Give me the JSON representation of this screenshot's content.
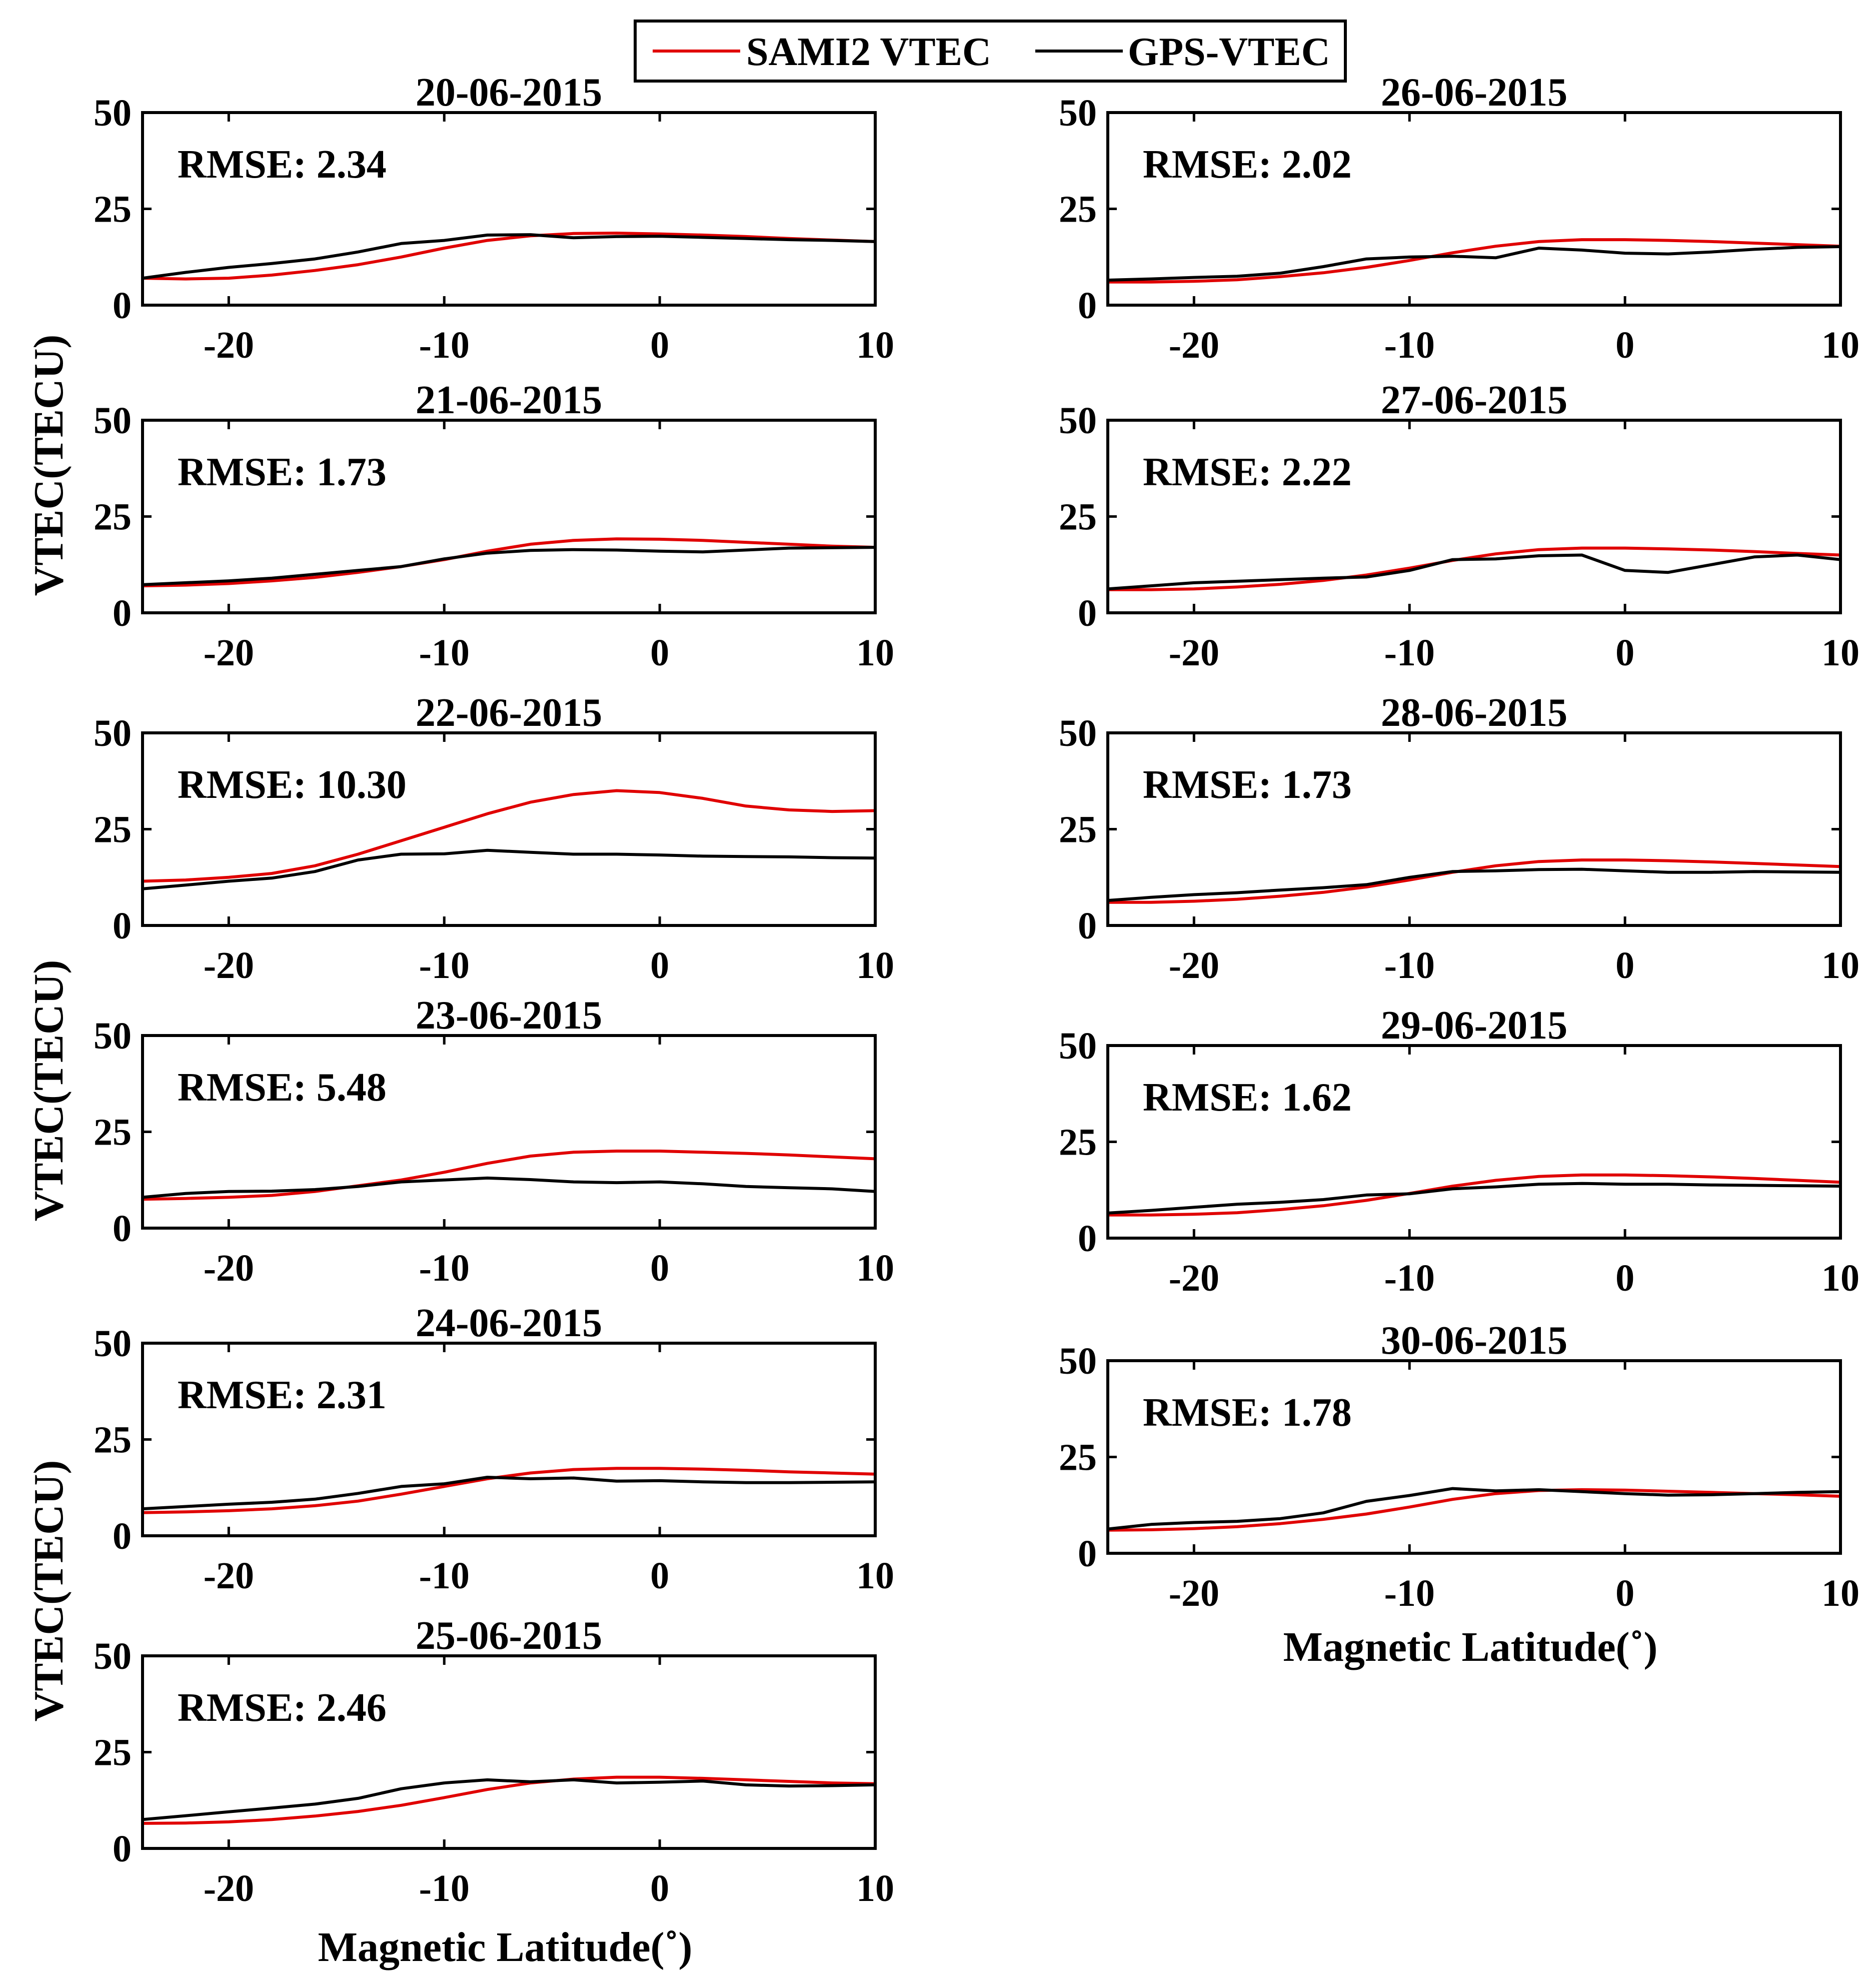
{
  "legend": {
    "entries": [
      {
        "name": "SAMI2 VTEC",
        "color": "#e00000"
      },
      {
        "name": "GPS-VTEC",
        "color": "#000000"
      }
    ]
  },
  "chart_data": [
    {
      "type": "line",
      "title": "20-06-2015",
      "annotation": "RMSE: 2.34",
      "x": [
        -24,
        -22,
        -20,
        -18,
        -16,
        -14,
        -12,
        -10,
        -8,
        -6,
        -4,
        -2,
        0,
        2,
        4,
        6,
        8,
        10
      ],
      "series": [
        {
          "name": "SAMI2 VTEC",
          "values": [
            7,
            6.8,
            7,
            7.8,
            9,
            10.5,
            12.5,
            14.8,
            16.8,
            18,
            18.6,
            18.7,
            18.5,
            18.2,
            17.8,
            17.3,
            16.9,
            16.5
          ]
        },
        {
          "name": "GPS-VTEC",
          "values": [
            7,
            8.5,
            9.8,
            10.8,
            12,
            13.8,
            16,
            16.8,
            18.2,
            18.3,
            17.5,
            17.8,
            17.9,
            17.6,
            17.3,
            17,
            16.8,
            16.5
          ]
        }
      ],
      "xlim": [
        -24,
        10
      ],
      "ylim": [
        0,
        50
      ],
      "xticks": [
        -20,
        -10,
        0,
        10
      ],
      "yticks": [
        0,
        25,
        50
      ]
    },
    {
      "type": "line",
      "title": "21-06-2015",
      "annotation": "RMSE: 1.73",
      "x": [
        -24,
        -22,
        -20,
        -18,
        -16,
        -14,
        -12,
        -10,
        -8,
        -6,
        -4,
        -2,
        0,
        2,
        4,
        6,
        8,
        10
      ],
      "series": [
        {
          "name": "SAMI2 VTEC",
          "values": [
            7,
            7.2,
            7.6,
            8.3,
            9.2,
            10.5,
            12,
            13.8,
            16,
            17.8,
            18.8,
            19.2,
            19.1,
            18.8,
            18.3,
            17.8,
            17.3,
            17
          ]
        },
        {
          "name": "GPS-VTEC",
          "values": [
            7.3,
            7.8,
            8.3,
            9,
            10,
            11,
            12,
            14,
            15.5,
            16.2,
            16.4,
            16.3,
            16,
            15.8,
            16.3,
            16.8,
            16.9,
            17
          ]
        }
      ],
      "xlim": [
        -24,
        10
      ],
      "ylim": [
        0,
        50
      ],
      "xticks": [
        -20,
        -10,
        0,
        10
      ],
      "yticks": [
        0,
        25,
        50
      ]
    },
    {
      "type": "line",
      "title": "22-06-2015",
      "annotation": "RMSE: 10.30",
      "x": [
        -24,
        -22,
        -20,
        -18,
        -16,
        -14,
        -12,
        -10,
        -8,
        -6,
        -4,
        -2,
        0,
        2,
        4,
        6,
        8,
        10
      ],
      "series": [
        {
          "name": "SAMI2 VTEC",
          "values": [
            11.5,
            11.8,
            12.5,
            13.5,
            15.5,
            18.5,
            22,
            25.5,
            29,
            32,
            34,
            35,
            34.5,
            33,
            31,
            30,
            29.6,
            29.8
          ]
        },
        {
          "name": "GPS-VTEC",
          "values": [
            9.5,
            10.5,
            11.5,
            12.3,
            14,
            17,
            18.5,
            18.6,
            19.5,
            19,
            18.5,
            18.5,
            18.3,
            18,
            17.9,
            17.8,
            17.6,
            17.5
          ]
        }
      ],
      "xlim": [
        -24,
        10
      ],
      "ylim": [
        0,
        50
      ],
      "xticks": [
        -20,
        -10,
        0,
        10
      ],
      "yticks": [
        0,
        25,
        50
      ]
    },
    {
      "type": "line",
      "title": "23-06-2015",
      "annotation": "RMSE: 5.48",
      "x": [
        -24,
        -22,
        -20,
        -18,
        -16,
        -14,
        -12,
        -10,
        -8,
        -6,
        -4,
        -2,
        0,
        2,
        4,
        6,
        8,
        10
      ],
      "series": [
        {
          "name": "SAMI2 VTEC",
          "values": [
            7.5,
            7.7,
            8,
            8.5,
            9.5,
            11,
            12.5,
            14.5,
            16.8,
            18.7,
            19.7,
            20,
            20,
            19.7,
            19.4,
            19,
            18.5,
            18
          ]
        },
        {
          "name": "GPS-VTEC",
          "values": [
            8,
            9,
            9.5,
            9.6,
            10,
            10.8,
            12,
            12.5,
            13,
            12.6,
            12,
            11.8,
            12,
            11.5,
            10.8,
            10.5,
            10.2,
            9.5
          ]
        }
      ],
      "xlim": [
        -24,
        10
      ],
      "ylim": [
        0,
        50
      ],
      "xticks": [
        -20,
        -10,
        0,
        10
      ],
      "yticks": [
        0,
        25,
        50
      ]
    },
    {
      "type": "line",
      "title": "24-06-2015",
      "annotation": "RMSE: 2.31",
      "x": [
        -24,
        -22,
        -20,
        -18,
        -16,
        -14,
        -12,
        -10,
        -8,
        -6,
        -4,
        -2,
        0,
        2,
        4,
        6,
        8,
        10
      ],
      "series": [
        {
          "name": "SAMI2 VTEC",
          "values": [
            6,
            6.2,
            6.5,
            7,
            7.8,
            9,
            10.8,
            12.8,
            14.8,
            16.3,
            17.2,
            17.5,
            17.5,
            17.3,
            17,
            16.6,
            16.3,
            16
          ]
        },
        {
          "name": "GPS-VTEC",
          "values": [
            7,
            7.6,
            8.2,
            8.7,
            9.5,
            11,
            12.8,
            13.5,
            15.2,
            14.8,
            15,
            14.2,
            14.3,
            14,
            13.8,
            13.8,
            13.9,
            14
          ]
        }
      ],
      "xlim": [
        -24,
        10
      ],
      "ylim": [
        0,
        50
      ],
      "xticks": [
        -20,
        -10,
        0,
        10
      ],
      "yticks": [
        0,
        25,
        50
      ]
    },
    {
      "type": "line",
      "title": "25-06-2015",
      "annotation": "RMSE: 2.46",
      "x": [
        -24,
        -22,
        -20,
        -18,
        -16,
        -14,
        -12,
        -10,
        -8,
        -6,
        -4,
        -2,
        0,
        2,
        4,
        6,
        8,
        10
      ],
      "series": [
        {
          "name": "SAMI2 VTEC",
          "values": [
            6.5,
            6.6,
            6.9,
            7.5,
            8.4,
            9.6,
            11.2,
            13.2,
            15.3,
            17,
            18,
            18.5,
            18.5,
            18.2,
            17.8,
            17.4,
            17,
            16.8
          ]
        },
        {
          "name": "GPS-VTEC",
          "values": [
            7.5,
            8.5,
            9.5,
            10.5,
            11.5,
            13,
            15.5,
            17,
            17.8,
            17.3,
            17.8,
            17,
            17.2,
            17.5,
            16.5,
            16.2,
            16.3,
            16.5
          ]
        }
      ],
      "xlim": [
        -24,
        10
      ],
      "ylim": [
        0,
        50
      ],
      "xticks": [
        -20,
        -10,
        0,
        10
      ],
      "yticks": [
        0,
        25,
        50
      ]
    },
    {
      "type": "line",
      "title": "26-06-2015",
      "annotation": "RMSE: 2.02",
      "x": [
        -24,
        -22,
        -20,
        -18,
        -16,
        -14,
        -12,
        -10,
        -8,
        -6,
        -4,
        -2,
        0,
        2,
        4,
        6,
        8,
        10
      ],
      "series": [
        {
          "name": "SAMI2 VTEC",
          "values": [
            6,
            6,
            6.2,
            6.6,
            7.4,
            8.4,
            9.8,
            11.6,
            13.6,
            15.3,
            16.5,
            17,
            17,
            16.8,
            16.5,
            16.1,
            15.7,
            15.3
          ]
        },
        {
          "name": "GPS-VTEC",
          "values": [
            6.5,
            6.8,
            7.2,
            7.5,
            8.3,
            10,
            12,
            12.5,
            12.7,
            12.3,
            14.8,
            14.3,
            13.5,
            13.3,
            13.8,
            14.5,
            15,
            15.2
          ]
        }
      ],
      "xlim": [
        -24,
        10
      ],
      "ylim": [
        0,
        50
      ],
      "xticks": [
        -20,
        -10,
        0,
        10
      ],
      "yticks": [
        0,
        25,
        50
      ]
    },
    {
      "type": "line",
      "title": "27-06-2015",
      "annotation": "RMSE: 2.22",
      "x": [
        -24,
        -22,
        -20,
        -18,
        -16,
        -14,
        -12,
        -10,
        -8,
        -6,
        -4,
        -2,
        0,
        2,
        4,
        6,
        8,
        10
      ],
      "series": [
        {
          "name": "SAMI2 VTEC",
          "values": [
            6,
            6,
            6.2,
            6.7,
            7.4,
            8.4,
            9.8,
            11.6,
            13.6,
            15.3,
            16.4,
            16.8,
            16.8,
            16.6,
            16.3,
            15.9,
            15.4,
            15
          ]
        },
        {
          "name": "GPS-VTEC",
          "values": [
            6.2,
            7,
            7.8,
            8.2,
            8.6,
            9,
            9.3,
            11,
            13.8,
            14,
            14.8,
            15,
            11,
            10.5,
            12.5,
            14.5,
            15,
            13.8
          ]
        }
      ],
      "xlim": [
        -24,
        10
      ],
      "ylim": [
        0,
        50
      ],
      "xticks": [
        -20,
        -10,
        0,
        10
      ],
      "yticks": [
        0,
        25,
        50
      ]
    },
    {
      "type": "line",
      "title": "28-06-2015",
      "annotation": "RMSE: 1.73",
      "x": [
        -24,
        -22,
        -20,
        -18,
        -16,
        -14,
        -12,
        -10,
        -8,
        -6,
        -4,
        -2,
        0,
        2,
        4,
        6,
        8,
        10
      ],
      "series": [
        {
          "name": "SAMI2 VTEC",
          "values": [
            6,
            6,
            6.3,
            6.8,
            7.6,
            8.6,
            10,
            11.8,
            13.8,
            15.5,
            16.6,
            17,
            17,
            16.8,
            16.5,
            16.1,
            15.7,
            15.3
          ]
        },
        {
          "name": "GPS-VTEC",
          "values": [
            6.5,
            7.3,
            8,
            8.5,
            9.2,
            9.8,
            10.6,
            12.5,
            14,
            14.2,
            14.5,
            14.6,
            14.2,
            13.8,
            13.8,
            14,
            13.9,
            13.8
          ]
        }
      ],
      "xlim": [
        -24,
        10
      ],
      "ylim": [
        0,
        50
      ],
      "xticks": [
        -20,
        -10,
        0,
        10
      ],
      "yticks": [
        0,
        25,
        50
      ]
    },
    {
      "type": "line",
      "title": "29-06-2015",
      "annotation": "RMSE: 1.62",
      "x": [
        -24,
        -22,
        -20,
        -18,
        -16,
        -14,
        -12,
        -10,
        -8,
        -6,
        -4,
        -2,
        0,
        2,
        4,
        6,
        8,
        10
      ],
      "series": [
        {
          "name": "SAMI2 VTEC",
          "values": [
            6,
            6,
            6.2,
            6.6,
            7.4,
            8.4,
            9.8,
            11.6,
            13.5,
            15,
            16,
            16.4,
            16.4,
            16.2,
            15.9,
            15.5,
            15,
            14.5
          ]
        },
        {
          "name": "GPS-VTEC",
          "values": [
            6.5,
            7.2,
            8,
            8.8,
            9.3,
            10,
            11.2,
            11.5,
            12.8,
            13.3,
            14,
            14.2,
            14,
            14,
            13.8,
            13.7,
            13.6,
            13.5
          ]
        }
      ],
      "xlim": [
        -24,
        10
      ],
      "ylim": [
        0,
        50
      ],
      "xticks": [
        -20,
        -10,
        0,
        10
      ],
      "yticks": [
        0,
        25,
        50
      ]
    },
    {
      "type": "line",
      "title": "30-06-2015",
      "annotation": "RMSE: 1.78",
      "x": [
        -24,
        -22,
        -20,
        -18,
        -16,
        -14,
        -12,
        -10,
        -8,
        -6,
        -4,
        -2,
        0,
        2,
        4,
        6,
        8,
        10
      ],
      "series": [
        {
          "name": "SAMI2 VTEC",
          "values": [
            6,
            6.1,
            6.4,
            6.9,
            7.7,
            8.8,
            10.2,
            12,
            14,
            15.5,
            16.3,
            16.5,
            16.4,
            16.1,
            15.8,
            15.5,
            15.2,
            14.8
          ]
        },
        {
          "name": "GPS-VTEC",
          "values": [
            6.3,
            7.5,
            8,
            8.3,
            9,
            10.5,
            13.5,
            15,
            16.8,
            16.2,
            16.5,
            16,
            15.5,
            15.1,
            15.2,
            15.5,
            15.8,
            16
          ]
        }
      ],
      "xlim": [
        -24,
        10
      ],
      "ylim": [
        0,
        50
      ],
      "xticks": [
        -20,
        -10,
        0,
        10
      ],
      "yticks": [
        0,
        25,
        50
      ]
    }
  ],
  "axis_labels": {
    "xlabel": "Magnetic Latitude(˚)",
    "ylabel": "VTEC(TECU)"
  }
}
